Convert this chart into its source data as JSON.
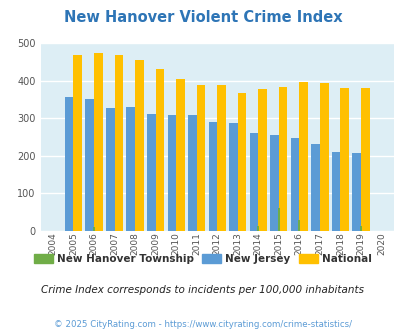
{
  "title": "New Hanover Violent Crime Index",
  "years": [
    2004,
    2005,
    2006,
    2007,
    2008,
    2009,
    2010,
    2011,
    2012,
    2013,
    2014,
    2015,
    2016,
    2017,
    2018,
    2019,
    2020
  ],
  "new_hanover": [
    0,
    0,
    11,
    0,
    0,
    0,
    0,
    0,
    0,
    0,
    14,
    60,
    30,
    0,
    0,
    14,
    0
  ],
  "new_jersey": [
    0,
    355,
    350,
    328,
    329,
    311,
    309,
    309,
    291,
    287,
    260,
    255,
    247,
    230,
    210,
    207,
    0
  ],
  "national": [
    0,
    469,
    474,
    467,
    455,
    431,
    405,
    387,
    387,
    368,
    377,
    383,
    397,
    394,
    381,
    379,
    0
  ],
  "nj_color": "#5b9bd5",
  "national_color": "#ffc000",
  "hanover_color": "#70ad47",
  "bg_color": "#ddeef5",
  "ylim": [
    0,
    500
  ],
  "yticks": [
    0,
    100,
    200,
    300,
    400,
    500
  ],
  "subtitle": "Crime Index corresponds to incidents per 100,000 inhabitants",
  "footer": "© 2025 CityRating.com - https://www.cityrating.com/crime-statistics/",
  "title_color": "#2e75b6",
  "subtitle_color": "#222222",
  "footer_color": "#5b9bd5"
}
